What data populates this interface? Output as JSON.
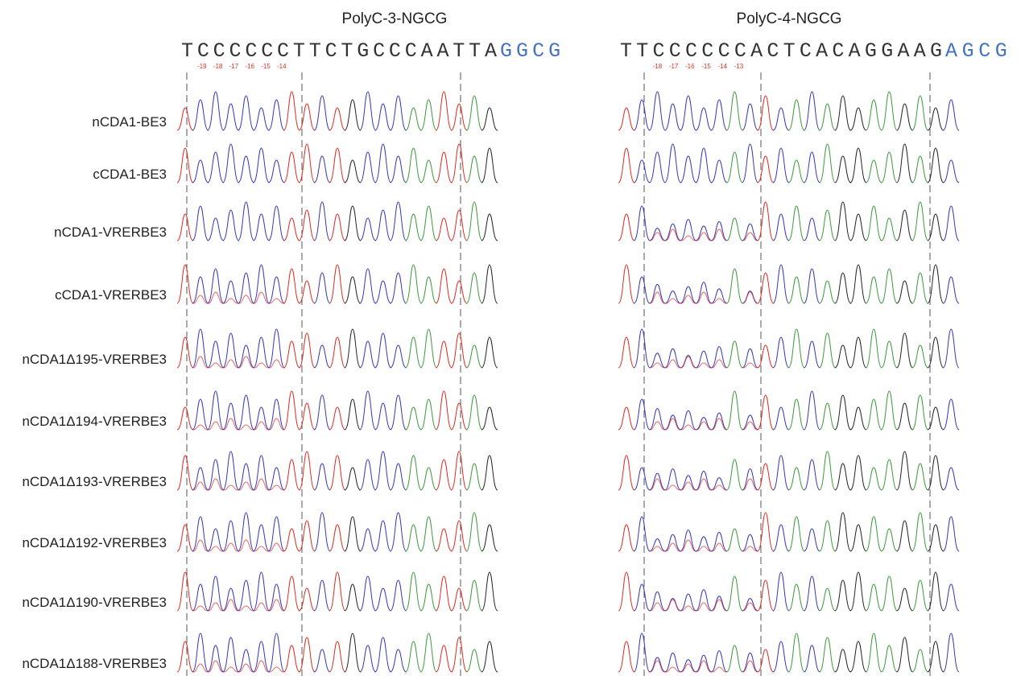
{
  "panels": [
    {
      "title": "PolyC-3-NGCG",
      "sequence": "TCCCCCCTTCTGCCCAATTA",
      "pam": "GGCG",
      "position_labels": [
        "-19",
        "-18",
        "-17",
        "-16",
        "-15",
        "-14"
      ]
    },
    {
      "title": "PolyC-4-NGCG",
      "sequence": "TTCCCCCCACTCACAGGAAG",
      "pam": "AGCG",
      "position_labels": [
        "-18",
        "-17",
        "-16",
        "-15",
        "-14",
        "-13"
      ]
    }
  ],
  "rows": [
    "nCDA1-BE3",
    "cCDA1-BE3",
    "nCDA1-VRERBE3",
    "cCDA1-VRERBE3",
    "nCDA1Δ195-VRERBE3",
    "nCDA1Δ194-VRERBE3",
    "nCDA1Δ193-VRERBE3",
    "nCDA1Δ192-VRERBE3",
    "nCDA1Δ190-VRERBE3",
    "nCDA1Δ188-VRERBE3"
  ]
}
